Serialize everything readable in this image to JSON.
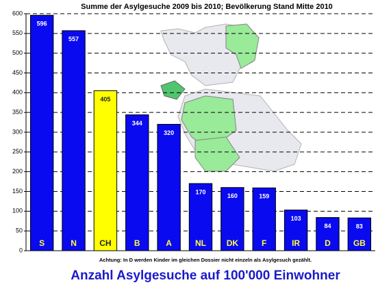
{
  "chart_data": {
    "type": "bar",
    "title": "Summe der Asylgesuche 2009 bis 2010; Bevölkerung Stand Mitte 2010",
    "note": "Achtung: In D werden Kinder im gleichen Dossier nicht einzeln als Asylgesuch gezählt.",
    "xlabel": "Anzahl Asylgesuche auf 100'000 Einwohner",
    "categories": [
      "S",
      "N",
      "CH",
      "B",
      "A",
      "NL",
      "DK",
      "F",
      "IR",
      "D",
      "GB"
    ],
    "values": [
      596,
      557,
      405,
      344,
      320,
      170,
      160,
      159,
      103,
      84,
      83
    ],
    "colors": [
      "#0a0af0",
      "#0a0af0",
      "#ffff00",
      "#0a0af0",
      "#0a0af0",
      "#0a0af0",
      "#0a0af0",
      "#0a0af0",
      "#0a0af0",
      "#0a0af0",
      "#0a0af0"
    ],
    "ylim": [
      0,
      600
    ],
    "yticks": [
      0,
      50,
      100,
      150,
      200,
      250,
      300,
      350,
      400,
      450,
      500,
      550,
      600
    ],
    "grid": true
  }
}
